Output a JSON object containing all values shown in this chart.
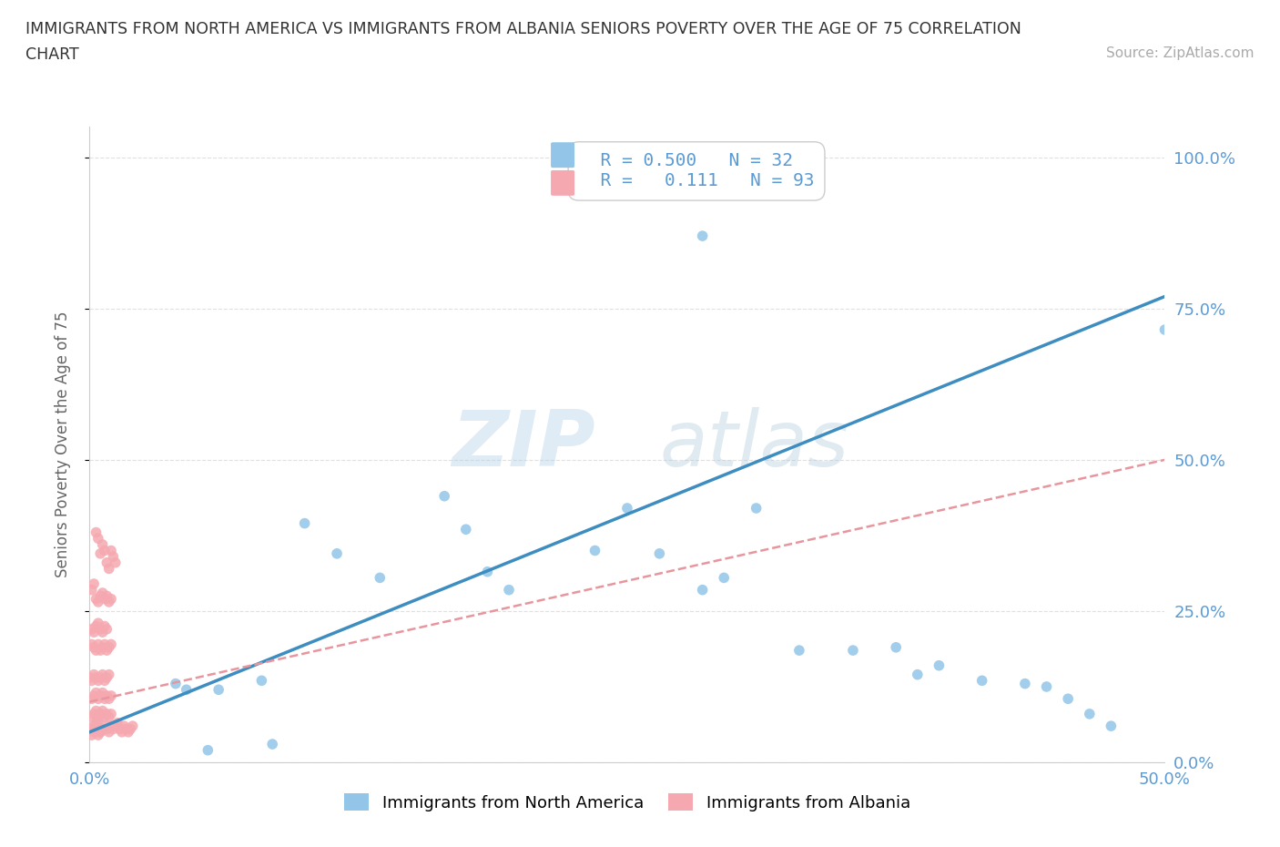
{
  "title_line1": "IMMIGRANTS FROM NORTH AMERICA VS IMMIGRANTS FROM ALBANIA SENIORS POVERTY OVER THE AGE OF 75 CORRELATION",
  "title_line2": "CHART",
  "source": "Source: ZipAtlas.com",
  "ylabel": "Seniors Poverty Over the Age of 75",
  "ytick_labels": [
    "0.0%",
    "25.0%",
    "50.0%",
    "75.0%",
    "100.0%"
  ],
  "ytick_values": [
    0.0,
    0.25,
    0.5,
    0.75,
    1.0
  ],
  "xlim": [
    0.0,
    0.52
  ],
  "ylim": [
    -0.02,
    1.08
  ],
  "plot_xlim": [
    0.0,
    0.5
  ],
  "plot_ylim": [
    0.0,
    1.05
  ],
  "r_north_america": 0.5,
  "n_north_america": 32,
  "r_albania": 0.111,
  "n_albania": 93,
  "color_north_america": "#92C5E8",
  "color_albania": "#F5A8B0",
  "color_line_north_america": "#3E8DC0",
  "color_line_albania": "#E8969E",
  "legend_label_na": "Immigrants from North America",
  "legend_label_al": "Immigrants from Albania",
  "watermark_zip": "ZIP",
  "watermark_atlas": "atlas",
  "background_color": "#FFFFFF",
  "grid_color": "#E0E0E0",
  "text_color": "#5B9BD5",
  "na_x": [
    0.285,
    0.055,
    0.085,
    0.1,
    0.115,
    0.135,
    0.165,
    0.175,
    0.185,
    0.195,
    0.235,
    0.25,
    0.265,
    0.285,
    0.295,
    0.31,
    0.33,
    0.355,
    0.375,
    0.385,
    0.395,
    0.415,
    0.435,
    0.445,
    0.455,
    0.465,
    0.475,
    0.04,
    0.045,
    0.06,
    0.08,
    0.5
  ],
  "na_y": [
    0.87,
    0.02,
    0.03,
    0.395,
    0.345,
    0.305,
    0.44,
    0.385,
    0.315,
    0.285,
    0.35,
    0.42,
    0.345,
    0.285,
    0.305,
    0.42,
    0.185,
    0.185,
    0.19,
    0.145,
    0.16,
    0.135,
    0.13,
    0.125,
    0.105,
    0.08,
    0.06,
    0.13,
    0.12,
    0.12,
    0.135,
    0.715
  ],
  "al_x": [
    0.0,
    0.002,
    0.003,
    0.004,
    0.005,
    0.006,
    0.007,
    0.008,
    0.009,
    0.01,
    0.011,
    0.012,
    0.013,
    0.014,
    0.015,
    0.016,
    0.017,
    0.018,
    0.019,
    0.02,
    0.003,
    0.004,
    0.005,
    0.006,
    0.007,
    0.008,
    0.009,
    0.01,
    0.011,
    0.012,
    0.001,
    0.002,
    0.003,
    0.004,
    0.005,
    0.006,
    0.007,
    0.008,
    0.009,
    0.01,
    0.001,
    0.002,
    0.003,
    0.004,
    0.005,
    0.006,
    0.007,
    0.008,
    0.001,
    0.002,
    0.003,
    0.004,
    0.005,
    0.006,
    0.007,
    0.008,
    0.009,
    0.01,
    0.0,
    0.001,
    0.002,
    0.003,
    0.004,
    0.005,
    0.006,
    0.007,
    0.008,
    0.009,
    0.001,
    0.002,
    0.003,
    0.004,
    0.005,
    0.006,
    0.007,
    0.008,
    0.009,
    0.01,
    0.001,
    0.002,
    0.003,
    0.004,
    0.005,
    0.006,
    0.007,
    0.008,
    0.009,
    0.01,
    0.001,
    0.002,
    0.003,
    0.004,
    0.005
  ],
  "al_y": [
    0.055,
    0.06,
    0.065,
    0.07,
    0.05,
    0.055,
    0.06,
    0.055,
    0.05,
    0.06,
    0.055,
    0.06,
    0.065,
    0.055,
    0.05,
    0.06,
    0.055,
    0.05,
    0.055,
    0.06,
    0.38,
    0.37,
    0.345,
    0.36,
    0.35,
    0.33,
    0.32,
    0.35,
    0.34,
    0.33,
    0.285,
    0.295,
    0.27,
    0.265,
    0.275,
    0.28,
    0.27,
    0.275,
    0.265,
    0.27,
    0.22,
    0.215,
    0.225,
    0.23,
    0.22,
    0.215,
    0.225,
    0.22,
    0.195,
    0.19,
    0.185,
    0.195,
    0.185,
    0.19,
    0.195,
    0.185,
    0.19,
    0.195,
    0.14,
    0.135,
    0.145,
    0.14,
    0.135,
    0.14,
    0.145,
    0.135,
    0.14,
    0.145,
    0.105,
    0.11,
    0.115,
    0.105,
    0.11,
    0.115,
    0.105,
    0.11,
    0.105,
    0.11,
    0.075,
    0.08,
    0.085,
    0.075,
    0.08,
    0.085,
    0.075,
    0.08,
    0.075,
    0.08,
    0.045,
    0.05,
    0.055,
    0.045,
    0.05
  ]
}
